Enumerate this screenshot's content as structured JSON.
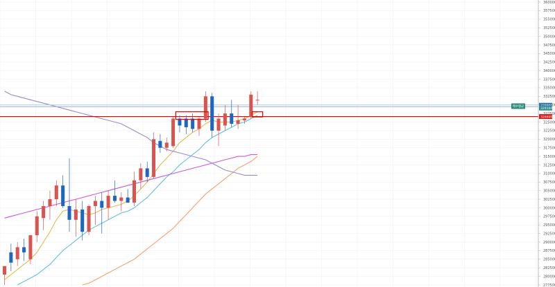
{
  "chart_data": {
    "type": "candlestick",
    "y_axis": {
      "position": "right",
      "range": [
        277500,
        360000
      ],
      "ticks": [
        360000,
        357500,
        355000,
        352500,
        350000,
        347500,
        345000,
        342500,
        340000,
        337500,
        335000,
        332500,
        330000,
        327500,
        325000,
        322500,
        320000,
        317500,
        315000,
        312500,
        310000,
        307500,
        305000,
        302500,
        300000,
        297500,
        295000,
        292500,
        290000,
        287500,
        285000,
        282500,
        280000,
        277500
      ]
    },
    "candles": [
      {
        "o": 280500,
        "h": 283000,
        "l": 277500,
        "c": 283000
      },
      {
        "o": 287000,
        "h": 289500,
        "l": 281500,
        "c": 284000
      },
      {
        "o": 285000,
        "h": 290000,
        "l": 283000,
        "c": 288500
      },
      {
        "o": 288500,
        "h": 291000,
        "l": 284500,
        "c": 287000
      },
      {
        "o": 285000,
        "h": 292000,
        "l": 283500,
        "c": 292000
      },
      {
        "o": 292000,
        "h": 299000,
        "l": 290000,
        "c": 297500
      },
      {
        "o": 297000,
        "h": 302000,
        "l": 293500,
        "c": 300500
      },
      {
        "o": 300500,
        "h": 305000,
        "l": 296500,
        "c": 302500
      },
      {
        "o": 302500,
        "h": 308000,
        "l": 300500,
        "c": 306500
      },
      {
        "o": 306500,
        "h": 309500,
        "l": 300000,
        "c": 300500
      },
      {
        "o": 300500,
        "h": 314500,
        "l": 293000,
        "c": 296500
      },
      {
        "o": 296500,
        "h": 302500,
        "l": 291500,
        "c": 299500
      },
      {
        "o": 299500,
        "h": 302000,
        "l": 290500,
        "c": 293000
      },
      {
        "o": 293000,
        "h": 301000,
        "l": 292000,
        "c": 300500
      },
      {
        "o": 300500,
        "h": 303500,
        "l": 295000,
        "c": 302000
      },
      {
        "o": 302000,
        "h": 304500,
        "l": 292500,
        "c": 300000
      },
      {
        "o": 300000,
        "h": 305000,
        "l": 296500,
        "c": 303500
      },
      {
        "o": 303500,
        "h": 308000,
        "l": 301500,
        "c": 302000
      },
      {
        "o": 302000,
        "h": 304500,
        "l": 299000,
        "c": 303000
      },
      {
        "o": 303000,
        "h": 305500,
        "l": 301500,
        "c": 301500
      },
      {
        "o": 301500,
        "h": 310500,
        "l": 300500,
        "c": 308000
      },
      {
        "o": 308000,
        "h": 313000,
        "l": 305500,
        "c": 311500
      },
      {
        "o": 311500,
        "h": 313500,
        "l": 307500,
        "c": 309000
      },
      {
        "o": 309000,
        "h": 322000,
        "l": 308500,
        "c": 320000
      },
      {
        "o": 319500,
        "h": 321500,
        "l": 316000,
        "c": 317500
      },
      {
        "o": 317500,
        "h": 320500,
        "l": 316500,
        "c": 319000
      },
      {
        "o": 318000,
        "h": 326500,
        "l": 317500,
        "c": 326000
      },
      {
        "o": 326000,
        "h": 327000,
        "l": 322000,
        "c": 324000
      },
      {
        "o": 326000,
        "h": 327000,
        "l": 321500,
        "c": 323500
      },
      {
        "o": 326000,
        "h": 327500,
        "l": 322000,
        "c": 323000
      },
      {
        "o": 323000,
        "h": 326500,
        "l": 321000,
        "c": 326000
      },
      {
        "o": 326000,
        "h": 334000,
        "l": 325000,
        "c": 332500
      },
      {
        "o": 332500,
        "h": 333500,
        "l": 320500,
        "c": 322500
      },
      {
        "o": 322500,
        "h": 327500,
        "l": 318000,
        "c": 326000
      },
      {
        "o": 324000,
        "h": 330000,
        "l": 322500,
        "c": 327500
      },
      {
        "o": 327500,
        "h": 331500,
        "l": 323500,
        "c": 324500
      },
      {
        "o": 324500,
        "h": 330000,
        "l": 323000,
        "c": 325500
      },
      {
        "o": 325500,
        "h": 326500,
        "l": 324500,
        "c": 326000
      },
      {
        "o": 326500,
        "h": 334000,
        "l": 326000,
        "c": 333000
      },
      {
        "o": 331500,
        "h": 334000,
        "l": 330000,
        "c": 331500
      }
    ],
    "moving_averages": [
      {
        "color": "#e6b84f",
        "values": [
          279000,
          280500,
          282000,
          283500,
          285000,
          287000,
          290000,
          293000,
          296500,
          299000,
          299500,
          299000,
          298500,
          298000,
          298500,
          299500,
          300000,
          300500,
          301000,
          302000,
          303500,
          305500,
          307500,
          310000,
          312500,
          314500,
          316500,
          319000,
          320500,
          322000,
          323000,
          324500,
          325500,
          325000,
          325000,
          325000,
          325500,
          326000,
          327000,
          328000
        ]
      },
      {
        "color": "#5bc1e0",
        "values": [
          null,
          null,
          277500,
          278500,
          279500,
          280500,
          282000,
          283500,
          285500,
          287500,
          289000,
          290500,
          292000,
          293500,
          294500,
          295500,
          296500,
          297500,
          298500,
          299000,
          300000,
          301500,
          303000,
          305000,
          307000,
          309000,
          310500,
          312500,
          314000,
          315500,
          317000,
          319000,
          320500,
          321500,
          322500,
          323500,
          324500,
          325000,
          326000,
          327000
        ]
      },
      {
        "color": "#f5a06a",
        "values": [
          null,
          null,
          null,
          null,
          null,
          null,
          null,
          null,
          null,
          null,
          null,
          null,
          277500,
          278000,
          279000,
          280000,
          281000,
          282000,
          283000,
          284000,
          285000,
          286500,
          288000,
          289500,
          291000,
          292500,
          294000,
          296000,
          298000,
          300000,
          302000,
          304000,
          305500,
          307000,
          308500,
          310000,
          311500,
          312500,
          313500,
          315000
        ]
      },
      {
        "color": "#cc55dd",
        "values": [
          297000,
          297500,
          298000,
          298500,
          299000,
          299500,
          300000,
          300500,
          301000,
          301500,
          302000,
          302500,
          303000,
          303500,
          304000,
          304500,
          305000,
          305500,
          306000,
          306500,
          307000,
          307500,
          308000,
          308500,
          309000,
          309500,
          310000,
          310500,
          311000,
          311500,
          312000,
          312500,
          313000,
          313500,
          314000,
          314500,
          315000,
          315000,
          315500,
          315500
        ]
      },
      {
        "color": "#9a88cc",
        "values": [
          334000,
          333000,
          332500,
          332000,
          331500,
          331000,
          330500,
          330000,
          329500,
          329000,
          328500,
          328000,
          327500,
          327000,
          326500,
          326000,
          325500,
          325000,
          324500,
          323500,
          322500,
          321500,
          320500,
          319000,
          318000,
          317000,
          316500,
          316000,
          315500,
          315000,
          314500,
          314000,
          313000,
          312000,
          311000,
          310500,
          310000,
          309500,
          309500,
          309500
        ]
      }
    ],
    "horizontal_lines": [
      {
        "value": 330000,
        "color": "#9fd3e6"
      },
      {
        "value": 329500,
        "color": "#a8a8d8"
      },
      {
        "value": 326600,
        "color": "#e00000"
      }
    ],
    "price_tags": [
      {
        "value": 329900,
        "color": "#2d6fae"
      },
      {
        "value": 329100,
        "color": "#2a8a8a"
      },
      {
        "value": 326600,
        "color": "#d81818"
      }
    ],
    "highlight_boxes": [
      {
        "color": "#e00000",
        "x_from_candle": 26.4,
        "x_to_candle": 31.4,
        "y_top": 328000,
        "y_bottom": 325800
      },
      {
        "color": "#e00000",
        "x_from_candle": 38.2,
        "x_to_candle": 39.8,
        "y_top": 328000,
        "y_bottom": 326500
      }
    ],
    "colors": {
      "up": "#d9534f",
      "down": "#1f66c2",
      "grid": "#eef0f3",
      "axis": "#b8bcc4"
    }
  },
  "tags": {
    "note_label": "매수평균"
  }
}
